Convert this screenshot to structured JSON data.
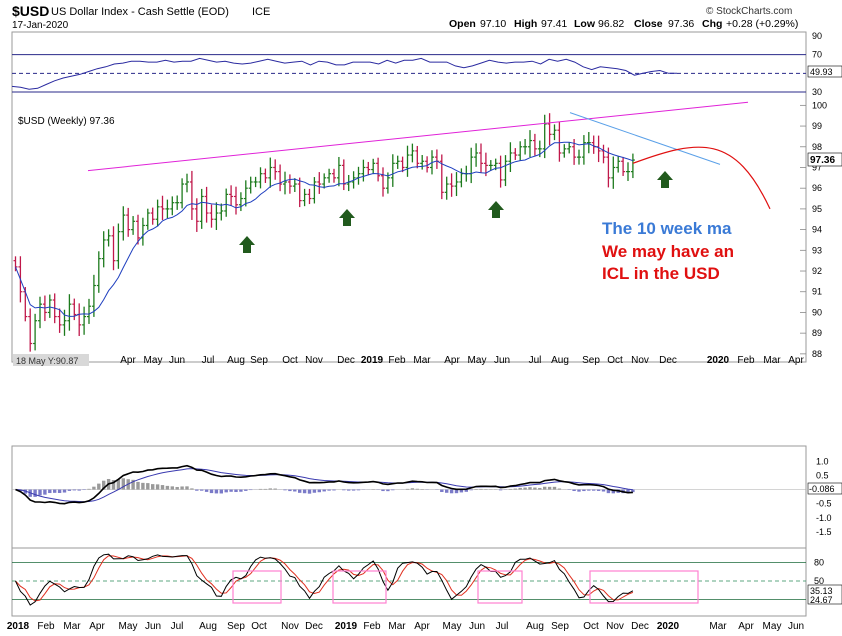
{
  "header": {
    "symbol": "$USD",
    "name": "US Dollar Index - Cash Settle (EOD)",
    "exchange": "ICE",
    "date": "17-Jan-2020",
    "open_label": "Open",
    "open": "97.10",
    "high_label": "High",
    "high": "97.41",
    "low_label": "Low",
    "low": "96.82",
    "close_label": "Close",
    "close": "97.36",
    "chg_label": "Chg",
    "chg": "+0.28 (+0.29%)",
    "brand": "© StockCharts.com"
  },
  "price_panel": {
    "legend": "$USD (Weekly) 97.36",
    "last_badge": "97.36",
    "hover_readout": "18 May Y:90.87"
  },
  "annotations": {
    "line1": "The 10 week ma",
    "line2": "We may have an",
    "line3": "ICL in the USD"
  },
  "colors": {
    "up_bar": "#1c7a1c",
    "down_bar": "#c0184a",
    "ma": "#1f3fbf",
    "trend_magenta": "#e022d8",
    "trend_blue": "#5aa0e8",
    "projection": "#e01010",
    "arrow": "#215a1d",
    "box": "#ff80d0",
    "text_blue": "#3a7ad6",
    "text_red": "#e01010"
  },
  "chart_data": [
    {
      "type": "line",
      "name": "rsi_panel",
      "ylim": [
        30,
        90
      ],
      "tick_labels": [
        "90",
        "70",
        "50",
        "30"
      ],
      "reference_levels": [
        70,
        50,
        30
      ],
      "current_value_label": "49.93",
      "values": [
        36,
        35,
        33,
        34,
        38,
        42,
        45,
        47,
        49,
        52,
        55,
        57,
        60,
        61,
        63,
        63,
        62,
        62,
        64,
        62,
        63,
        63,
        66,
        64,
        62,
        63,
        61,
        60,
        61,
        63,
        65,
        63,
        61,
        62,
        63,
        59,
        63,
        62,
        59,
        59,
        62,
        62,
        62,
        60,
        64,
        61,
        64,
        64,
        66,
        62,
        62,
        62,
        58,
        56,
        58,
        61,
        64,
        62,
        61,
        62,
        62,
        63,
        60,
        65,
        63,
        65,
        62,
        57,
        54,
        57,
        56,
        55,
        53,
        48,
        50,
        52,
        53,
        50,
        50
      ]
    },
    {
      "type": "bar",
      "name": "price_panel",
      "bar_style": "ohlc",
      "series_label": "$USD (Weekly) 97.36",
      "ylim": [
        87.8,
        100.5
      ],
      "y_ticks": [
        88,
        89,
        90,
        91,
        92,
        93,
        94,
        95,
        96,
        97,
        98,
        99,
        100
      ],
      "x_tick_labels": [
        "Apr",
        "May",
        "Jun",
        "Jul",
        "Aug",
        "Sep",
        "Oct",
        "Nov",
        "Dec",
        "2019",
        "Feb",
        "Mar",
        "Apr",
        "May",
        "Jun",
        "Jul",
        "Aug",
        "Sep",
        "Oct",
        "Nov",
        "Dec",
        "2020",
        "Feb",
        "Mar",
        "Apr",
        "May",
        "Jun"
      ],
      "weekly_close": [
        92.2,
        91.0,
        89.8,
        88.5,
        89.6,
        90.4,
        90.0,
        90.6,
        89.8,
        89.4,
        89.6,
        90.4,
        89.9,
        89.4,
        89.8,
        90.3,
        91.3,
        92.6,
        93.5,
        93.7,
        92.5,
        93.9,
        94.7,
        94.0,
        94.4,
        93.6,
        94.2,
        94.8,
        94.5,
        95.1,
        95.0,
        95.0,
        95.3,
        95.3,
        96.2,
        96.3,
        95.0,
        94.4,
        95.6,
        94.8,
        94.5,
        94.8,
        94.9,
        95.7,
        95.6,
        95.2,
        95.5,
        96.0,
        96.3,
        96.3,
        96.7,
        96.5,
        97.0,
        96.8,
        96.2,
        96.3,
        96.1,
        96.2,
        95.4,
        95.7,
        95.5,
        96.3,
        96.2,
        96.5,
        96.7,
        96.5,
        97.1,
        96.2,
        96.3,
        96.5,
        96.7,
        97.0,
        96.9,
        97.2,
        96.6,
        96.0,
        96.5,
        97.2,
        97.3,
        97.0,
        97.6,
        97.8,
        97.2,
        97.3,
        97.0,
        97.5,
        97.3,
        95.8,
        96.2,
        96.1,
        96.3,
        96.7,
        96.7,
        97.5,
        97.7,
        97.2,
        97.1,
        97.1,
        97.2,
        96.4,
        97.3,
        97.7,
        97.6,
        98.0,
        98.0,
        98.3,
        97.9,
        97.9,
        99.1,
        98.6,
        98.8,
        97.7,
        97.9,
        98.0,
        97.5,
        97.5,
        98.2,
        98.2,
        98.0,
        97.8,
        97.5,
        96.5,
        97.0,
        97.3,
        96.8,
        96.8,
        97.36
      ],
      "ma10_label": "10 week ma",
      "trendlines": [
        "rising magenta upper line",
        "falling blue resistance line"
      ],
      "markers": [
        "arrow Sep 2018",
        "arrow Jan 2019",
        "arrow Jun 2019",
        "arrow Jan 2020"
      ]
    },
    {
      "type": "line",
      "name": "macd_panel",
      "ylim": [
        -2.0,
        1.4
      ],
      "tick_labels": [
        "1.0",
        "0.5",
        "-0.5",
        "-1.0",
        "-1.5"
      ],
      "current_value_label": "-0.086"
    },
    {
      "type": "line",
      "name": "stochastic_panel",
      "ylim": [
        0,
        100
      ],
      "tick_labels": [
        "80",
        "50"
      ],
      "reference_levels": [
        80,
        50,
        20
      ],
      "current_value_labels": [
        "35.13",
        "24.67"
      ],
      "x_tick_labels": [
        "2018",
        "Feb",
        "Mar",
        "Apr",
        "May",
        "Jun",
        "Jul",
        "Aug",
        "Sep",
        "Oct",
        "Nov",
        "Dec",
        "2019",
        "Feb",
        "Mar",
        "Apr",
        "May",
        "Jun",
        "Jul",
        "Aug",
        "Sep",
        "Oct",
        "Nov",
        "Dec",
        "2020",
        "Mar",
        "Apr",
        "May",
        "Jun"
      ],
      "highlight_boxes": [
        "Sep-Oct 2018",
        "Jan-Feb 2019",
        "Jun-Jul 2019",
        "Nov 2019-Jan 2020"
      ]
    }
  ]
}
